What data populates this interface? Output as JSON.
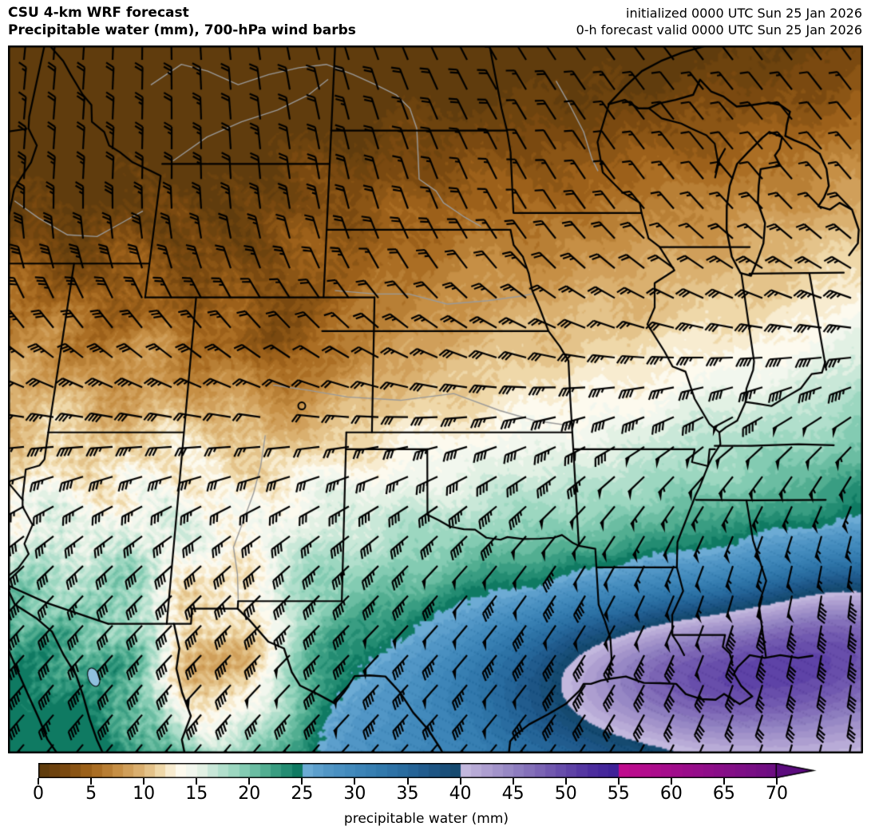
{
  "header": {
    "title_line1": "CSU 4-km WRF forecast",
    "title_line2": "Precipitable water (mm), 700-hPa wind barbs",
    "init_text": "initialized 0000 UTC Sun 25 Jan 2026",
    "valid_text": "0-h forecast valid 0000 UTC Sun 25 Jan 2026"
  },
  "colorbar": {
    "label": "precipitable water (mm)",
    "unit": "mm",
    "min": 0,
    "max": 70,
    "bin_mm": 1,
    "tick_interval": 5,
    "ticks": [
      0,
      5,
      10,
      15,
      20,
      25,
      30,
      35,
      40,
      45,
      50,
      55,
      60,
      65,
      70
    ],
    "extend": "max (right arrow)",
    "over_color": "#5c0b7e",
    "segments": [
      {
        "range": [
          0,
          25
        ],
        "stops": [
          [
            0,
            "#5a390c"
          ],
          [
            2.5,
            "#7a4910"
          ],
          [
            5,
            "#a4661c"
          ],
          [
            7.5,
            "#c68f45"
          ],
          [
            10,
            "#dfb87a"
          ],
          [
            11.5,
            "#efd8a9"
          ],
          [
            12.5,
            "#f8ecd0"
          ],
          [
            13.5,
            "#fdfaee"
          ],
          [
            14.5,
            "#f2f7ee"
          ],
          [
            15.5,
            "#e2f1e4"
          ],
          [
            17,
            "#bce3d2"
          ],
          [
            18.5,
            "#9cd7c0"
          ],
          [
            20,
            "#77c5ab"
          ],
          [
            21.5,
            "#52ae91"
          ],
          [
            23,
            "#2d957a"
          ],
          [
            24.5,
            "#0f7a62"
          ]
        ]
      },
      {
        "range": [
          25,
          40
        ],
        "stops": [
          [
            25,
            "#73b1d8"
          ],
          [
            27,
            "#5599c8"
          ],
          [
            29,
            "#458dbf"
          ],
          [
            31,
            "#3a82b5"
          ],
          [
            33,
            "#2f76aa"
          ],
          [
            35,
            "#27699c"
          ],
          [
            37,
            "#1f588a"
          ],
          [
            39.5,
            "#154a70"
          ]
        ]
      },
      {
        "range": [
          40,
          55
        ],
        "stops": [
          [
            40,
            "#c8bee1"
          ],
          [
            42.5,
            "#ad9ed0"
          ],
          [
            45,
            "#9283c2"
          ],
          [
            47.5,
            "#7b64b4"
          ],
          [
            50,
            "#6348a9"
          ],
          [
            52.5,
            "#4c2d9e"
          ],
          [
            54.5,
            "#3f2298"
          ]
        ]
      },
      {
        "range": [
          55,
          100
        ],
        "stops": [
          [
            55,
            "#c20d8f"
          ],
          [
            57.5,
            "#b30c8d"
          ],
          [
            60,
            "#a30c8c"
          ],
          [
            62.5,
            "#950d8a"
          ],
          [
            65,
            "#870e88"
          ],
          [
            67.5,
            "#790e85"
          ],
          [
            70,
            "#6a0d82"
          ]
        ]
      }
    ]
  },
  "map": {
    "overlays": [
      "state borders (black)",
      "US-Mexico border and Rio Grande",
      "Gulf of Mexico and Great Lakes coastlines",
      "rivers (gray)",
      "700-hPa wind barbs (black)",
      "calm-wind circle over south-central Colorado",
      "small reservoir (light blue) in Sonora, Mexico"
    ],
    "region_note": "central United States from the northern Rockies and Great Lakes south to northern Mexico and the Gulf coast"
  },
  "chart_data": {
    "type": "filled_contour_map",
    "title": "CSU 4-km WRF forecast — Precipitable water (mm), 700-hPa wind barbs",
    "model": "CSU 4-km WRF",
    "initialized": "0000 UTC Sun 25 Jan 2026",
    "valid": "0000 UTC Sun 25 Jan 2026",
    "forecast_hour": 0,
    "variable": "precipitable water",
    "unit": "mm",
    "overlay": "700-hPa wind barbs",
    "region": "central United States (Rockies to Great Lakes, Canada to Gulf of Mexico)",
    "colorbar_range": [
      0,
      70
    ],
    "colorbar_ticks": [
      0,
      5,
      10,
      15,
      20,
      25,
      30,
      35,
      40,
      45,
      50,
      55,
      60,
      65,
      70
    ],
    "contour_interval_mm": 1,
    "features": [
      {
        "region": "northern Rockies (Idaho / Montana / Wyoming)",
        "pw_mm": "0-4"
      },
      {
        "region": "Dakotas, Minnesota, Wisconsin, Michigan",
        "pw_mm": "1-5"
      },
      {
        "region": "Nebraska / Iowa / Illinois belt",
        "pw_mm": "5-10"
      },
      {
        "region": "Kansas / Missouri white transition band",
        "pw_mm": "10-14"
      },
      {
        "region": "Oklahoma / north Texas / Arkansas",
        "pw_mm": "15-25"
      },
      {
        "region": "central-east Texas to lower Mississippi valley",
        "pw_mm": "25-40"
      },
      {
        "region": "Louisiana / upper Texas Gulf coast maximum",
        "pw_mm": "40-50"
      },
      {
        "region": "Arizona / Sonora moist plume",
        "pw_mm": "15-24"
      },
      {
        "region": "New Mexico / far west Texas dry tongue",
        "pw_mm": "5-12"
      },
      {
        "region": "open Gulf of Mexico (bottom right)",
        "pw_mm": "30-40"
      }
    ],
    "winds": [
      {
        "region": "northern Plains / upper Midwest",
        "direction": "N to NW",
        "speed_kt": "10-25"
      },
      {
        "region": "central Plains",
        "direction": "W to SW",
        "speed_kt": "25-35"
      },
      {
        "region": "south-central Colorado",
        "direction": "light / calm",
        "speed_kt": "0-10"
      },
      {
        "region": "Texas and Gulf states",
        "direction": "SW",
        "speed_kt": "35-45"
      },
      {
        "region": "mid-South jet streak (right edge)",
        "direction": "SW",
        "speed_kt": "45-55"
      }
    ]
  }
}
